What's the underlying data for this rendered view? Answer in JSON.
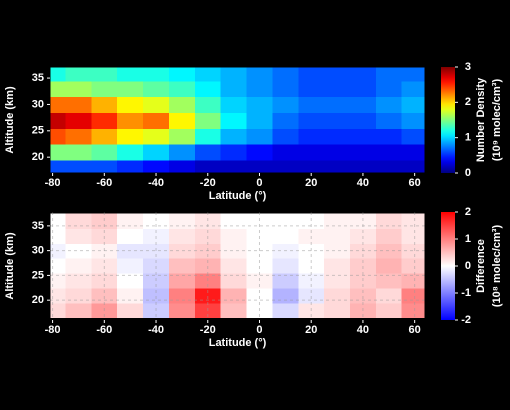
{
  "chart_data": [
    {
      "type": "heatmap",
      "xlabel": "Latitude (°)",
      "ylabel": "Altitude (km)",
      "colorbar_label": [
        "Number Density",
        "(10⁹ molec/cm³)"
      ],
      "colormap": "jet",
      "x": [
        -80,
        -70,
        -60,
        -50,
        -40,
        -30,
        -20,
        -10,
        0,
        10,
        20,
        30,
        40,
        50,
        60
      ],
      "y": [
        18,
        21,
        24,
        27,
        30,
        33,
        36
      ],
      "z": [
        [
          0.6,
          0.6,
          0.6,
          0.5,
          0.4,
          0.3,
          0.2,
          0.2,
          0.2,
          0.2,
          0.2,
          0.2,
          0.2,
          0.2,
          0.2
        ],
        [
          1.5,
          1.5,
          1.4,
          1.2,
          1.0,
          0.8,
          0.6,
          0.5,
          0.4,
          0.3,
          0.3,
          0.3,
          0.3,
          0.3,
          0.3
        ],
        [
          2.4,
          2.3,
          2.1,
          1.9,
          1.8,
          1.6,
          1.2,
          0.9,
          0.8,
          0.6,
          0.5,
          0.5,
          0.5,
          0.5,
          0.6
        ],
        [
          2.8,
          2.7,
          2.5,
          2.2,
          2.3,
          1.9,
          1.5,
          1.1,
          0.9,
          0.7,
          0.6,
          0.6,
          0.6,
          0.7,
          0.8
        ],
        [
          2.3,
          2.3,
          2.1,
          1.9,
          1.8,
          1.6,
          1.3,
          1.0,
          0.9,
          0.8,
          0.7,
          0.7,
          0.7,
          0.8,
          0.9
        ],
        [
          1.6,
          1.6,
          1.5,
          1.5,
          1.4,
          1.3,
          1.1,
          0.9,
          0.8,
          0.7,
          0.6,
          0.6,
          0.6,
          0.7,
          0.8
        ],
        [
          1.2,
          1.3,
          1.3,
          1.2,
          1.2,
          1.1,
          1.0,
          0.9,
          0.8,
          0.7,
          0.6,
          0.6,
          0.6,
          0.7,
          0.7
        ]
      ],
      "xlim": [
        -81,
        64
      ],
      "ylim": [
        17,
        37.1
      ],
      "xticks": [
        -80,
        -60,
        -40,
        -20,
        0,
        20,
        40,
        60
      ],
      "yticks": [
        20,
        25,
        30,
        35
      ],
      "zlim": [
        0,
        3
      ],
      "zticks": [
        0,
        1,
        2,
        3
      ],
      "grid": false
    },
    {
      "type": "heatmap",
      "xlabel": "Latitude (°)",
      "ylabel": "Altitude (km)",
      "colorbar_label": [
        "Difference",
        "(10⁸ molec/cm³)"
      ],
      "colormap": "bwr",
      "x": [
        -80,
        -70,
        -60,
        -50,
        -40,
        -30,
        -20,
        -10,
        0,
        10,
        20,
        30,
        40,
        50,
        60
      ],
      "y": [
        18,
        21,
        24,
        27,
        30,
        33,
        36
      ],
      "z": [
        [
          0.3,
          0.5,
          0.8,
          0.3,
          -0.4,
          0.9,
          1.5,
          0.5,
          0.0,
          -0.3,
          0.2,
          0.3,
          0.6,
          0.4,
          0.9
        ],
        [
          0.2,
          0.3,
          0.5,
          0.1,
          -0.5,
          1.0,
          1.8,
          0.6,
          0.0,
          -0.6,
          -0.2,
          0.3,
          0.5,
          0.3,
          1.0
        ],
        [
          0.1,
          0.2,
          0.3,
          0.0,
          -0.4,
          0.7,
          1.0,
          0.3,
          0.1,
          -0.4,
          -0.1,
          0.2,
          0.4,
          0.5,
          0.6
        ],
        [
          0.0,
          0.1,
          0.2,
          -0.1,
          -0.3,
          0.5,
          0.6,
          0.2,
          0.0,
          -0.2,
          0.0,
          0.2,
          0.4,
          0.6,
          0.4
        ],
        [
          -0.1,
          0.0,
          0.1,
          -0.2,
          -0.2,
          0.3,
          0.4,
          0.1,
          0.0,
          -0.1,
          0.0,
          0.1,
          0.3,
          0.5,
          0.3
        ],
        [
          0.0,
          0.2,
          0.3,
          0.0,
          -0.1,
          0.2,
          0.3,
          0.1,
          0.0,
          0.0,
          0.1,
          0.1,
          0.2,
          0.4,
          0.2
        ],
        [
          0.0,
          0.3,
          0.4,
          0.1,
          0.0,
          0.1,
          0.2,
          0.0,
          0.0,
          0.0,
          0.0,
          0.1,
          0.1,
          0.3,
          0.2
        ]
      ],
      "xlim": [
        -81,
        64
      ],
      "ylim": [
        16,
        37.8
      ],
      "xticks": [
        -80,
        -60,
        -40,
        -20,
        0,
        20,
        40,
        60
      ],
      "yticks": [
        20,
        25,
        30,
        35
      ],
      "zlim": [
        -2,
        2
      ],
      "zticks": [
        -2,
        -1,
        0,
        1,
        2
      ],
      "grid": true
    }
  ]
}
